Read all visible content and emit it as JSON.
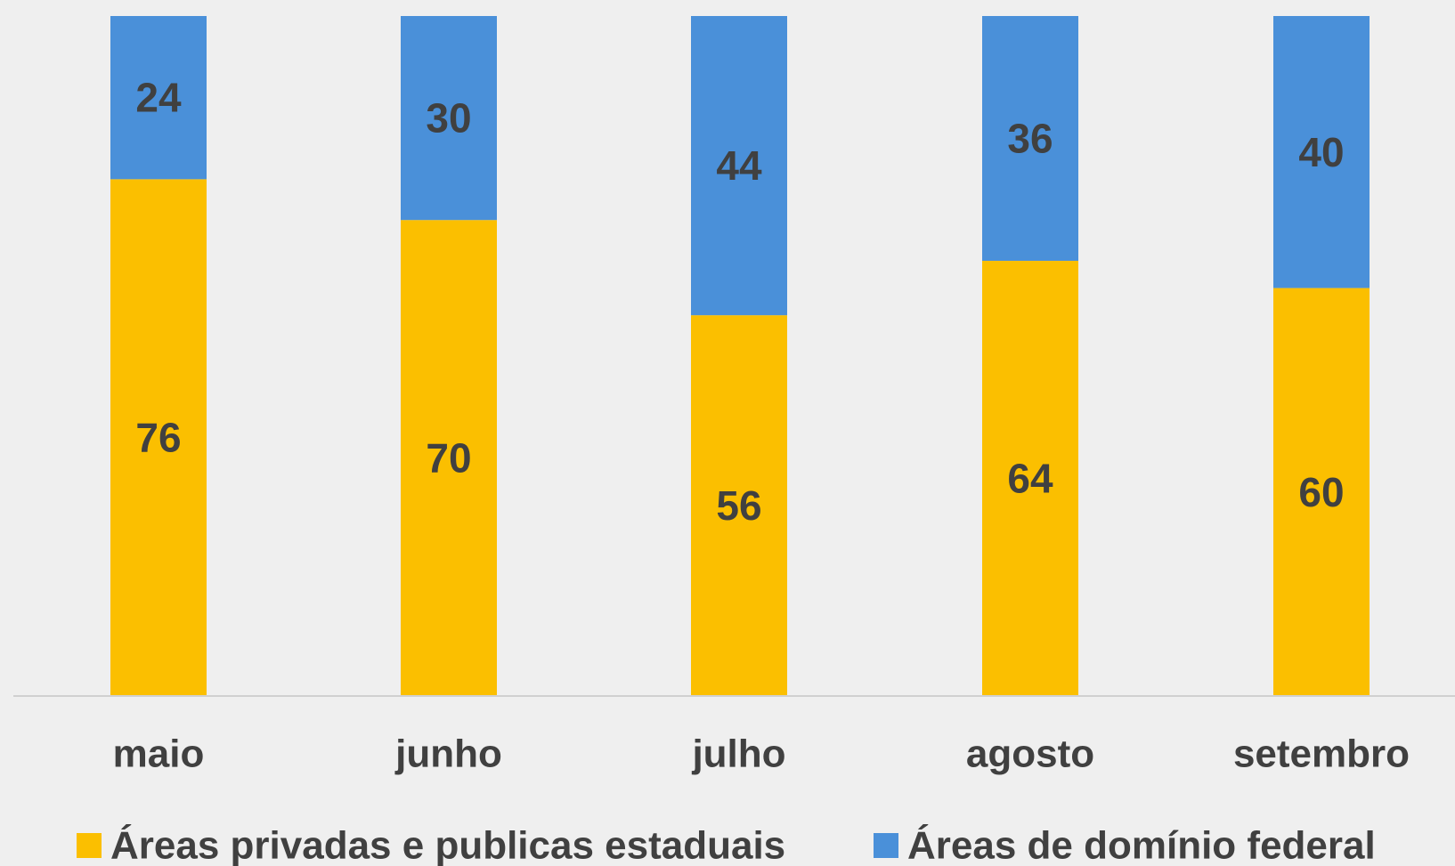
{
  "chart_data": {
    "type": "bar",
    "stacked": true,
    "categories": [
      "maio",
      "junho",
      "julho",
      "agosto",
      "setembro"
    ],
    "series": [
      {
        "name": "Áreas privadas e publicas estaduais",
        "color": "#fbbf00",
        "values": [
          76,
          70,
          56,
          64,
          60
        ]
      },
      {
        "name": "Áreas de domínio federal",
        "color": "#4a90d9",
        "values": [
          24,
          30,
          44,
          36,
          40
        ]
      }
    ],
    "title": "",
    "xlabel": "",
    "ylabel": "",
    "ylim": [
      0,
      100
    ],
    "grid": false,
    "legend": "bottom",
    "data_labels": true
  }
}
